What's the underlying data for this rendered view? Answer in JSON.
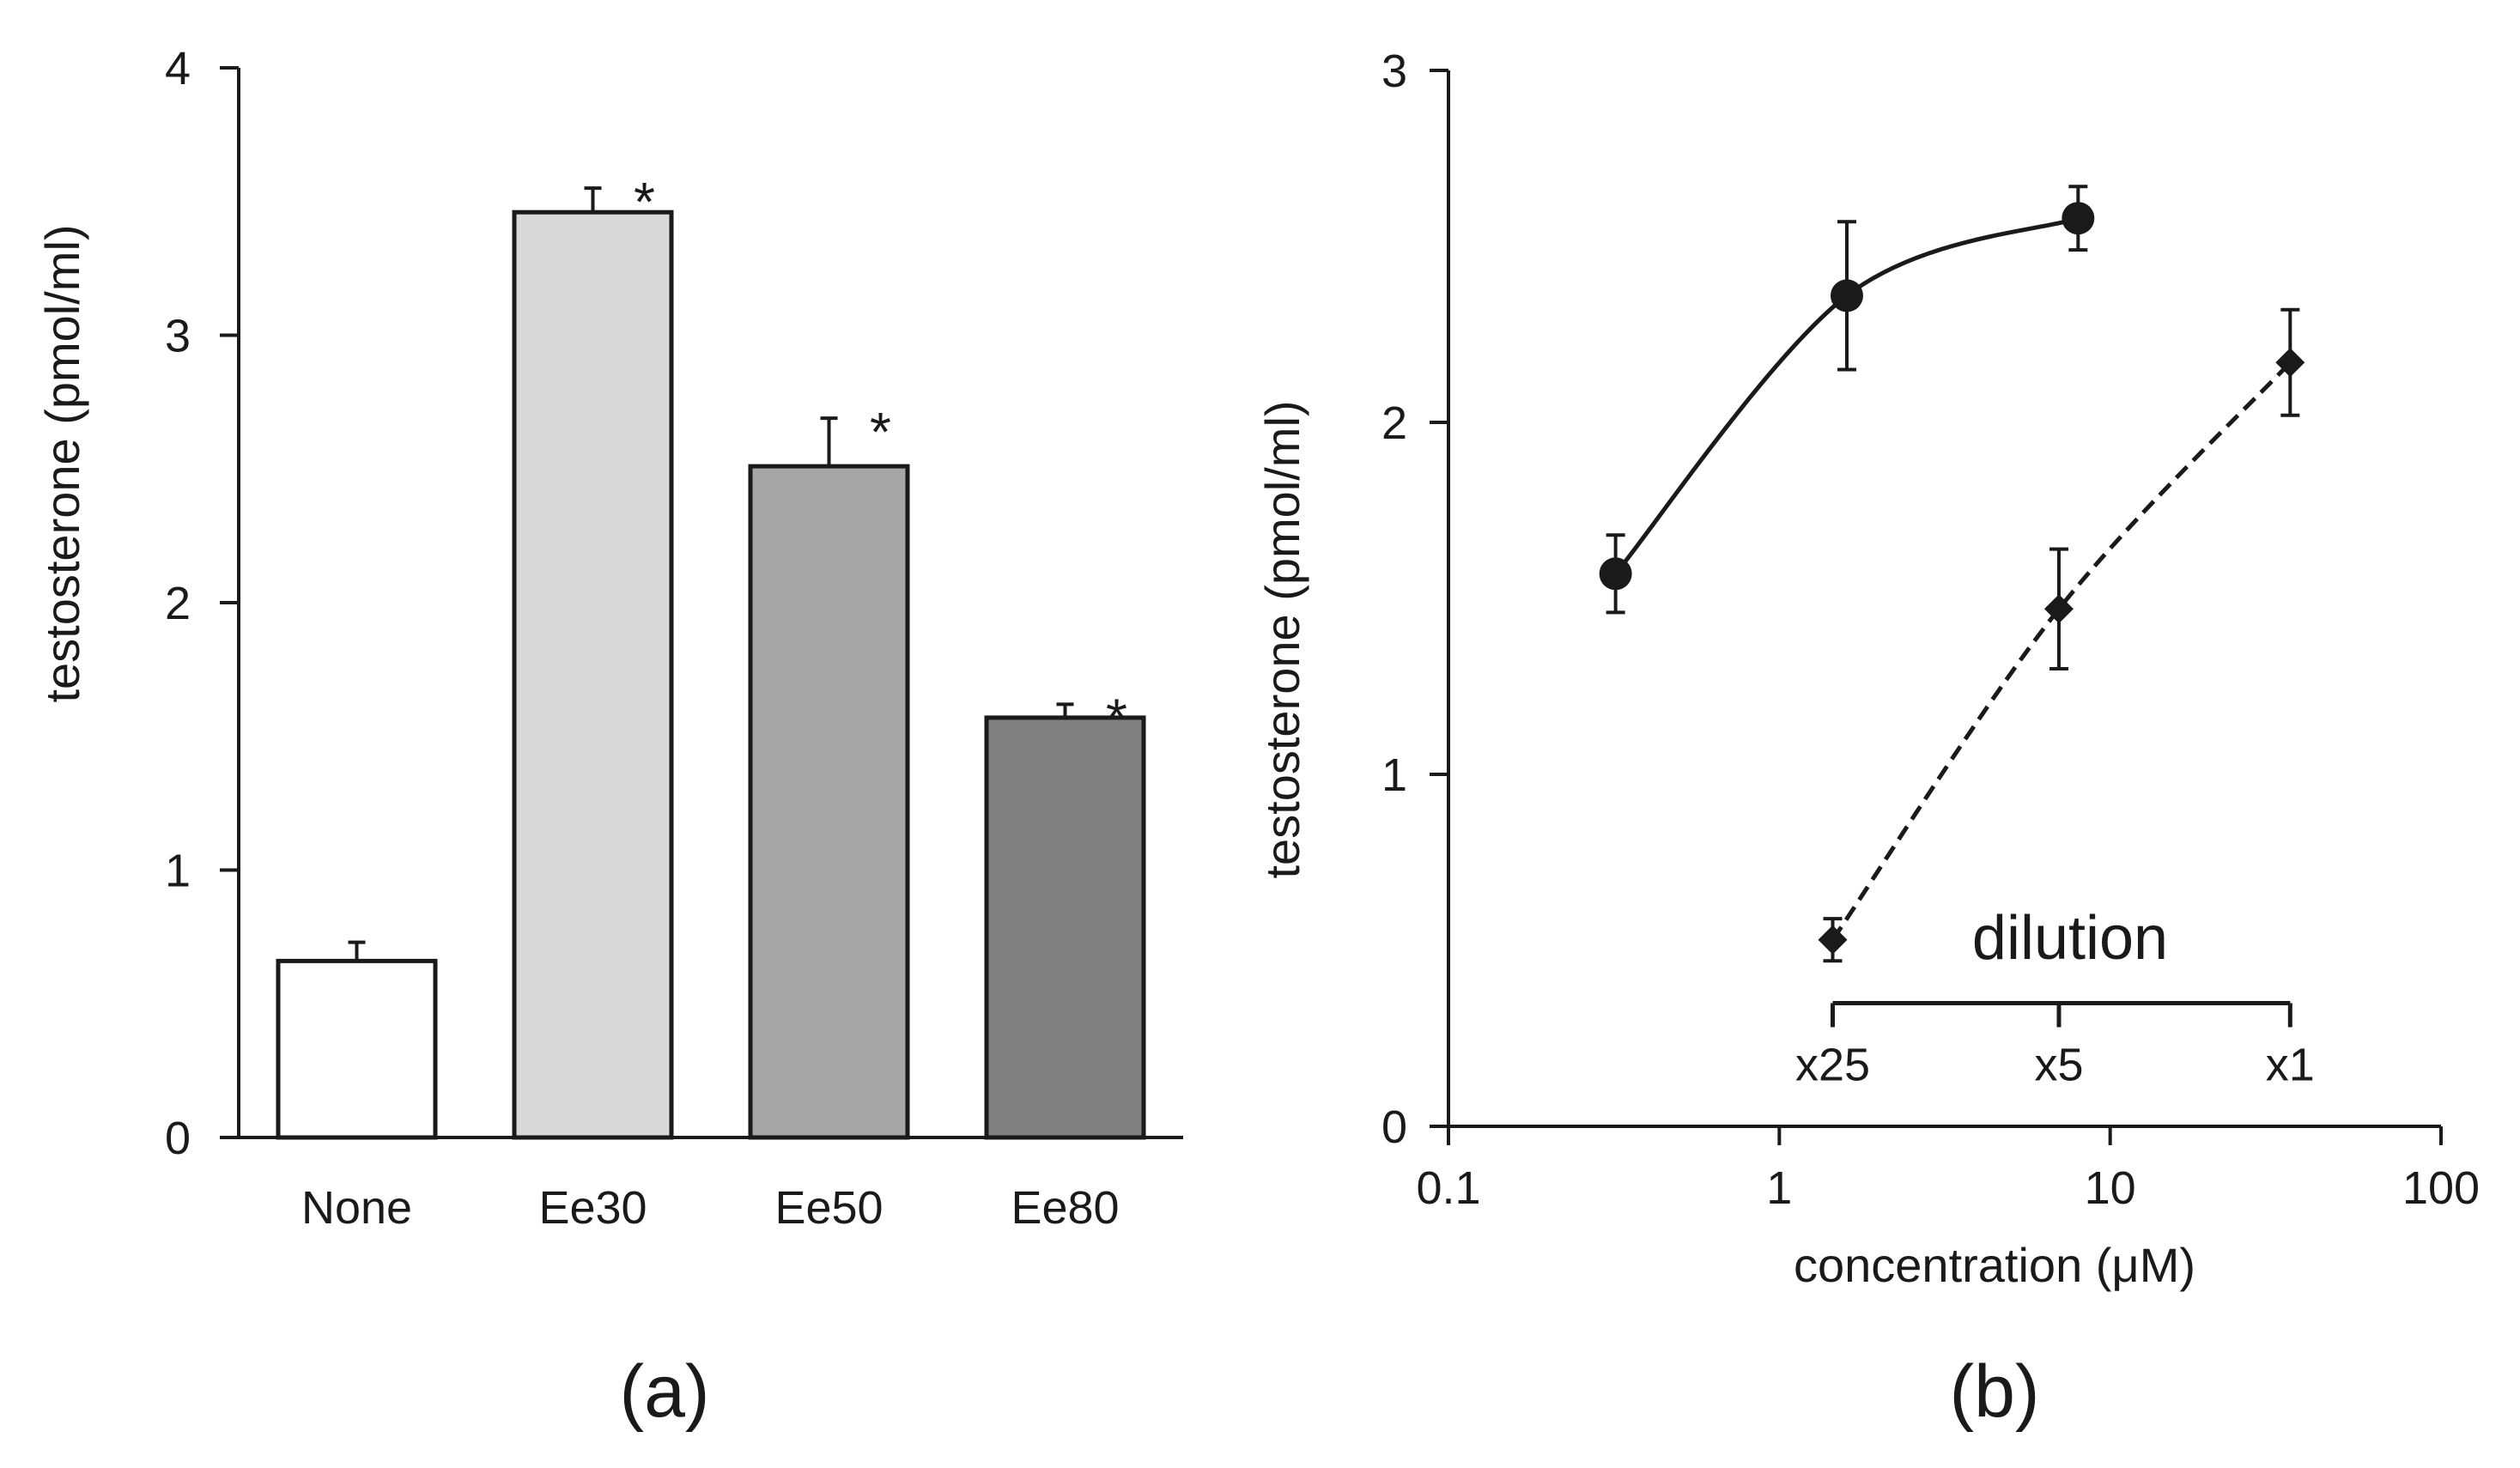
{
  "chart_data": [
    {
      "panel": "(a)",
      "type": "bar",
      "title": "",
      "xlabel": "",
      "ylabel": "testosterone  (pmol/ml)",
      "ylim": [
        0,
        4
      ],
      "yticks": [
        0,
        1,
        2,
        3,
        4
      ],
      "categories": [
        "None",
        "Ee30",
        "Ee50",
        "Ee80"
      ],
      "values": [
        0.66,
        3.46,
        2.51,
        1.57
      ],
      "errors": [
        0.07,
        0.09,
        0.18,
        0.05
      ],
      "significance": [
        "",
        "*",
        "*",
        "*"
      ],
      "bar_colors": [
        "#ffffff",
        "#d9d9d9",
        "#a6a6a6",
        "#808080"
      ]
    },
    {
      "panel": "(b)",
      "type": "line",
      "title": "",
      "xlabel": "concentration  (μM)",
      "ylabel": "testosterone  (pmol/ml)",
      "xscale": "log",
      "xlim": [
        0.1,
        100
      ],
      "xticks": [
        0.1,
        1,
        10,
        100
      ],
      "xtick_labels": [
        "0.1",
        "1",
        "10",
        "100"
      ],
      "ylim": [
        0,
        3
      ],
      "yticks": [
        0,
        1,
        2,
        3
      ],
      "series": [
        {
          "name": "circles",
          "marker": "circle",
          "line": "solid",
          "x": [
            0.32,
            1.6,
            8.0
          ],
          "y": [
            1.57,
            2.36,
            2.58
          ],
          "errors": [
            0.11,
            0.21,
            0.09
          ]
        },
        {
          "name": "diamonds",
          "marker": "diamond",
          "line": "dashed",
          "x": [
            1.45,
            7.0,
            35.0
          ],
          "y": [
            0.53,
            1.47,
            2.17
          ],
          "errors": [
            0.06,
            0.17,
            0.15
          ]
        }
      ],
      "annotation": "dilution",
      "dilution_scale": {
        "labels": [
          "x25",
          "x5",
          "x1"
        ],
        "x": [
          1.45,
          7.0,
          35.0
        ],
        "y": 0.35
      }
    }
  ]
}
